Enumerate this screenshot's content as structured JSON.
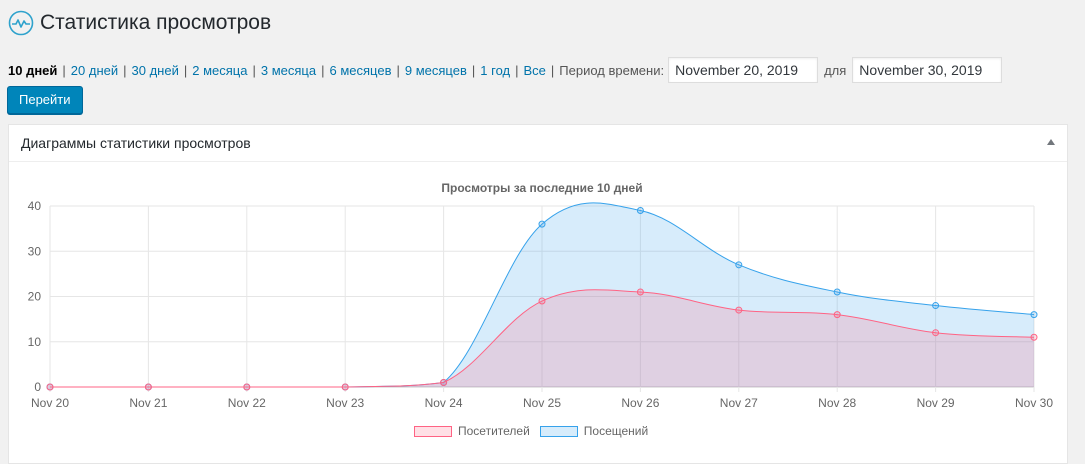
{
  "header": {
    "title": "Статистика просмотров",
    "logo_icon": "pulse-wave-icon"
  },
  "ranges": [
    {
      "label": "10 дней",
      "current": true
    },
    {
      "label": "20 дней"
    },
    {
      "label": "30 дней"
    },
    {
      "label": "2 месяца"
    },
    {
      "label": "3 месяца"
    },
    {
      "label": "6 месяцев"
    },
    {
      "label": "9 месяцев"
    },
    {
      "label": "1 год"
    },
    {
      "label": "Все"
    }
  ],
  "separator": "|",
  "period": {
    "label": "Период времени:",
    "from_value": "November 20, 2019",
    "to_label": "для",
    "to_value": "November 30, 2019"
  },
  "go_button": "Перейти",
  "postbox": {
    "title": "Диаграммы статистики просмотров",
    "toggle_icon": "arrow-up-icon"
  },
  "chart_data": {
    "type": "area",
    "title": "Просмотры за последние 10 дней",
    "categories": [
      "Nov 20",
      "Nov 21",
      "Nov 22",
      "Nov 23",
      "Nov 24",
      "Nov 25",
      "Nov 26",
      "Nov 27",
      "Nov 28",
      "Nov 29",
      "Nov 30"
    ],
    "ylim": [
      0,
      40
    ],
    "yticks": [
      0,
      10,
      20,
      30,
      40
    ],
    "grid": true,
    "legend_position": "bottom",
    "series": [
      {
        "name": "Посетителей",
        "values": [
          0,
          0,
          0,
          0,
          1,
          19,
          21,
          17,
          16,
          12,
          11
        ],
        "color": "#ff6384",
        "fill": "rgba(255,99,132,0.2)"
      },
      {
        "name": "Посещений",
        "values": [
          0,
          0,
          0,
          0,
          1,
          36,
          39,
          27,
          21,
          18,
          16
        ],
        "color": "#36a2eb",
        "fill": "rgba(54,162,235,0.2)"
      }
    ]
  }
}
